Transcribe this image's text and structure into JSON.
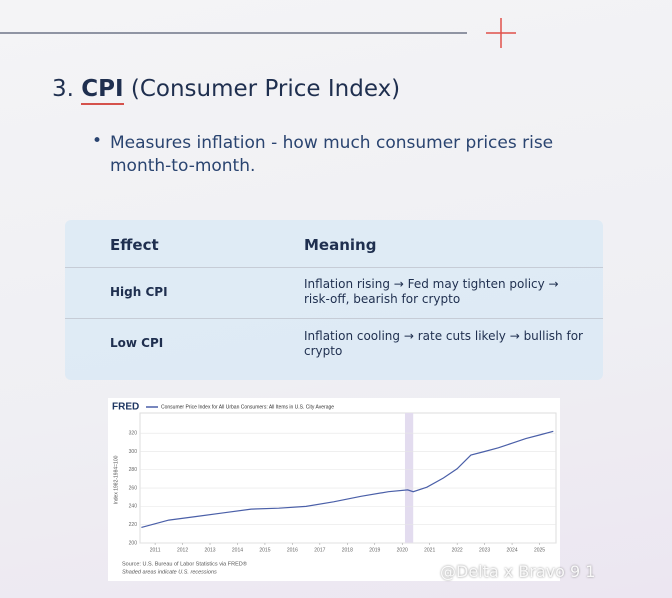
{
  "header": {
    "number": "3.",
    "term": "CPI",
    "rest": "(Consumer Price Index)"
  },
  "bullet": "Measures inflation - how much consumer prices rise month-to-month.",
  "table": {
    "columns": [
      "Effect",
      "Meaning"
    ],
    "rows": [
      [
        "High CPI",
        "Inflation rising → Fed may tighten policy → risk-off, bearish for crypto"
      ],
      [
        "Low CPI",
        "Inflation cooling → rate cuts likely → bullish for crypto"
      ]
    ]
  },
  "chart_data": {
    "type": "line",
    "logo": "FRED",
    "y_label": "Index 1982-1984=100",
    "source": "Source: U.S. Bureau of Labor Statistics via FRED®",
    "note": "Shaded areas indicate U.S. recessions",
    "x": [
      2010.5,
      2011.5,
      2012.5,
      2013.5,
      2014.5,
      2015.5,
      2016.5,
      2017.5,
      2018.5,
      2019.5,
      2020.2,
      2020.4,
      2020.9,
      2021.5,
      2022.0,
      2022.5,
      2023.0,
      2023.5,
      2024.0,
      2024.5,
      2025.0,
      2025.5
    ],
    "series": [
      {
        "name": "Consumer Price Index for All Urban Consumers: All Items in U.S. City Average",
        "color": "#4a5fa8",
        "values": [
          217,
          225,
          229,
          233,
          237,
          238,
          240,
          245,
          251,
          256,
          258,
          256,
          261,
          271,
          281,
          296,
          300,
          304,
          309,
          314,
          318,
          322
        ]
      }
    ],
    "recession": [
      2020.1,
      2020.4
    ],
    "xlim": [
      2010.45,
      2025.6
    ],
    "ylim": [
      200,
      342
    ],
    "xticks": [
      2011,
      2012,
      2013,
      2014,
      2015,
      2016,
      2017,
      2018,
      2019,
      2020,
      2021,
      2022,
      2023,
      2024,
      2025
    ],
    "yticks": [
      200,
      220,
      240,
      260,
      280,
      300,
      320
    ],
    "grid": true
  },
  "watermark": "@Delta x Bravo 9 1"
}
